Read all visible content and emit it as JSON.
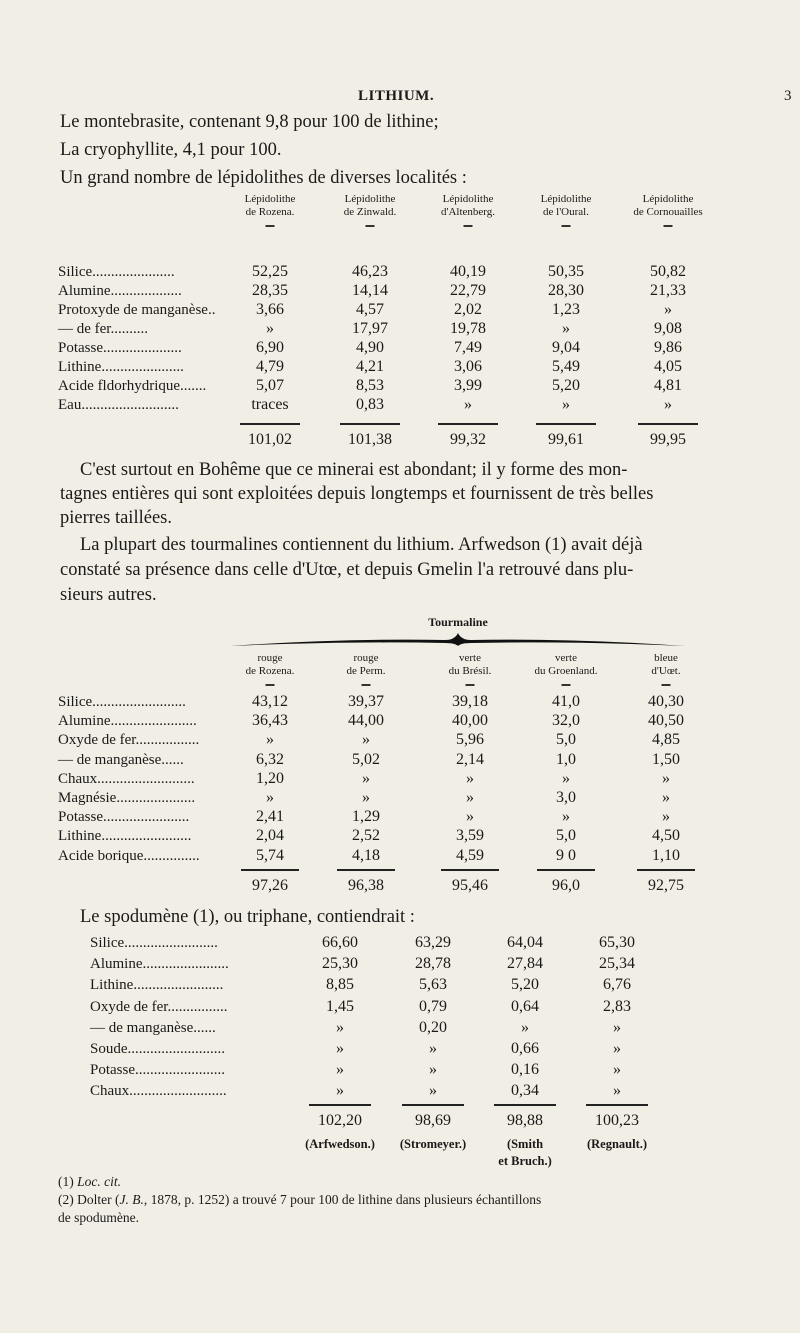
{
  "header": {
    "title": "LITHIUM.",
    "page_number": "3"
  },
  "intro_lines": [
    "Le montebrasite, contenant 9,8 pour 100 de lithine;",
    "La cryophyllite, 4,1 pour 100.",
    "Un grand nombre de lépidolithes de diverses localités :"
  ],
  "table1": {
    "columns": [
      [
        "Lépidolithe",
        "de Rozena."
      ],
      [
        "Lépidolithe",
        "de Zinwald."
      ],
      [
        "Lépidolithe",
        "d'Altenberg."
      ],
      [
        "Lépidolithe",
        "de l'Oural."
      ],
      [
        "Lépidolithe",
        "de Cornouailles"
      ]
    ],
    "rows": [
      {
        "label": "Silice......................",
        "values": [
          "52,25",
          "46,23",
          "40,19",
          "50,35",
          "50,82"
        ]
      },
      {
        "label": "Alumine...................",
        "values": [
          "28,35",
          "14,14",
          "22,79",
          "28,30",
          "21,33"
        ]
      },
      {
        "label": "Protoxyde de manganèse..",
        "values": [
          "3,66",
          "4,57",
          "2,02",
          "1,23",
          "»"
        ]
      },
      {
        "label": "     —     de fer..........",
        "values": [
          "»",
          "17,97",
          "19,78",
          "»",
          "9,08"
        ]
      },
      {
        "label": "Potasse.....................",
        "values": [
          "6,90",
          "4,90",
          "7,49",
          "9,04",
          "9,86"
        ]
      },
      {
        "label": "Lithine......................",
        "values": [
          "4,79",
          "4,21",
          "3,06",
          "5,49",
          "4,05"
        ]
      },
      {
        "label": "Acide fldorhydrique.......",
        "values": [
          "5,07",
          "8,53",
          "3,99",
          "5,20",
          "4,81"
        ]
      },
      {
        "label": "Eau..........................",
        "values": [
          "traces",
          "0,83",
          "»",
          "»",
          "»"
        ]
      }
    ],
    "totals": [
      "101,02",
      "101,38",
      "99,32",
      "99,61",
      "99,95"
    ]
  },
  "paragraph1": [
    "C'est surtout en Bohême que ce minerai est abondant; il y forme des mon-",
    "tagnes entières qui sont exploitées depuis longtemps et fournissent de très belles",
    "pierres taillées."
  ],
  "paragraph2": [
    "La plupart des tourmalines contiennent du lithium. Arfwedson (1) avait déjà",
    "constaté sa présence dans celle d'Utœ, et depuis Gmelin l'a retrouvé dans plu-",
    "sieurs autres."
  ],
  "table2": {
    "group_label": "Tourmaline",
    "columns": [
      [
        "rouge",
        "de Rozena."
      ],
      [
        "rouge",
        "de Perm."
      ],
      [
        "verte",
        "du Brésil."
      ],
      [
        "verte",
        "du Groenland."
      ],
      [
        "bleue",
        "d'Uœt."
      ]
    ],
    "rows": [
      {
        "label": "Silice.........................",
        "values": [
          "43,12",
          "39,37",
          "39,18",
          "41,0",
          "40,30"
        ]
      },
      {
        "label": "Alumine.......................",
        "values": [
          "36,43",
          "44,00",
          "40,00",
          "32,0",
          "40,50"
        ]
      },
      {
        "label": "Oxyde de fer.................",
        "values": [
          "»",
          "»",
          "5,96",
          "5,0",
          "4,85"
        ]
      },
      {
        "label": "  —  de manganèse......",
        "values": [
          "6,32",
          "5,02",
          "2,14",
          "1,0",
          "1,50"
        ]
      },
      {
        "label": "Chaux..........................",
        "values": [
          "1,20",
          "»",
          "»",
          "»",
          "»"
        ]
      },
      {
        "label": "Magnésie.....................",
        "values": [
          "»",
          "»",
          "»",
          "3,0",
          "»"
        ]
      },
      {
        "label": "Potasse.......................",
        "values": [
          "2,41",
          "1,29",
          "»",
          "»",
          "»"
        ]
      },
      {
        "label": "Lithine........................",
        "values": [
          "2,04",
          "2,52",
          "3,59",
          "5,0",
          "4,50"
        ]
      },
      {
        "label": "Acide borique...............",
        "values": [
          "5,74",
          "4,18",
          "4,59",
          "9 0",
          "1,10"
        ]
      }
    ],
    "totals": [
      "97,26",
      "96,38",
      "95,46",
      "96,0",
      "92,75"
    ]
  },
  "spodumene_intro": "Le spodumène (1), ou triphane, contiendrait :",
  "table3": {
    "rows": [
      {
        "label": "Silice.........................",
        "values": [
          "66,60",
          "63,29",
          "64,04",
          "65,30"
        ]
      },
      {
        "label": "Alumine.......................",
        "values": [
          "25,30",
          "28,78",
          "27,84",
          "25,34"
        ]
      },
      {
        "label": "Lithine........................",
        "values": [
          "8,85",
          "5,63",
          "5,20",
          "6,76"
        ]
      },
      {
        "label": "Oxyde de fer................",
        "values": [
          "1,45",
          "0,79",
          "0,64",
          "2,83"
        ]
      },
      {
        "label": "   —   de manganèse......",
        "values": [
          "»",
          "0,20",
          "»",
          "»"
        ]
      },
      {
        "label": "Soude..........................",
        "values": [
          "»",
          "»",
          "0,66",
          "»"
        ]
      },
      {
        "label": "Potasse........................",
        "values": [
          "»",
          "»",
          "0,16",
          "»"
        ]
      },
      {
        "label": "Chaux..........................",
        "values": [
          "»",
          "»",
          "0,34",
          "»"
        ]
      }
    ],
    "totals": [
      "102,20",
      "98,69",
      "98,88",
      "100,23"
    ],
    "authors": [
      [
        "(Arfwedson.)"
      ],
      [
        "(Stromeyer.)"
      ],
      [
        "(Smith",
        "et Bruch.)"
      ],
      [
        "(Regnault.)"
      ]
    ]
  },
  "footnotes": {
    "f1_num": "(1)",
    "f1_text": "Loc. cit.",
    "f2_num": "(2) Dolter (",
    "f2_ref": "J. B.",
    "f2_text": ", 1878, p. 1252) a trouvé 7 pour 100 de lithine dans plusieurs échantillons",
    "f2_cont": "de spodumène."
  }
}
